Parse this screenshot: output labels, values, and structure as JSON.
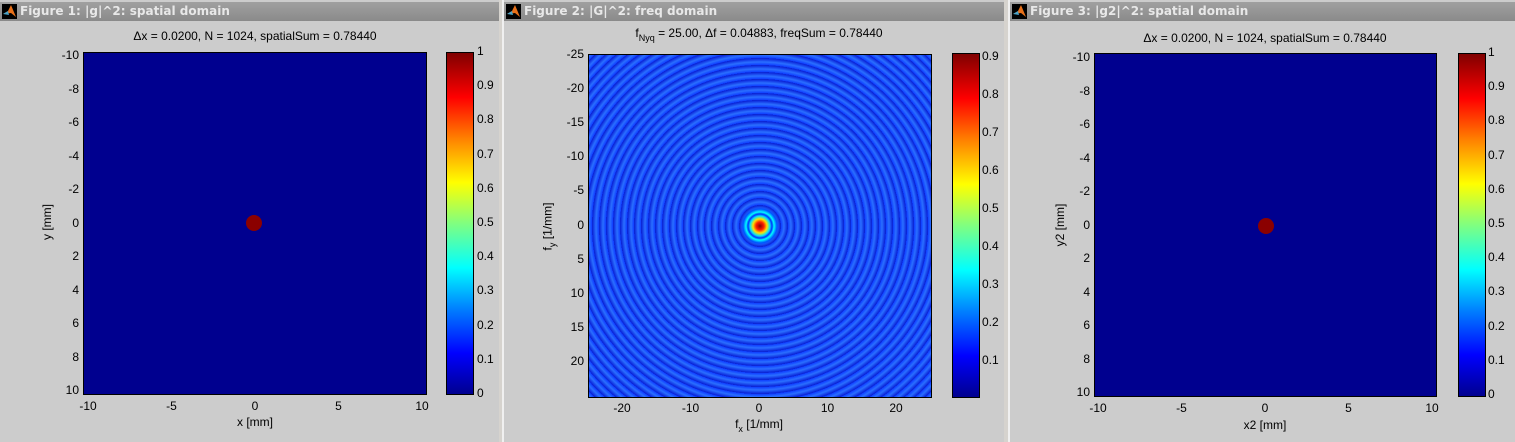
{
  "figures": [
    {
      "window_title": "Figure 1: |g|^2: spatial domain",
      "plot_title": "Δx = 0.0200,  N = 1024,  spatialSum = 0.78440",
      "xlabel": "x [mm]",
      "ylabel": "y [mm]",
      "xticks": [
        "-10",
        "-5",
        "0",
        "5",
        "10"
      ],
      "yticks": [
        "-10",
        "-8",
        "-6",
        "-4",
        "-2",
        "0",
        "2",
        "4",
        "6",
        "8",
        "10"
      ],
      "cbar_ticks": [
        "1",
        "0.9",
        "0.8",
        "0.7",
        "0.6",
        "0.5",
        "0.4",
        "0.3",
        "0.2",
        "0.1",
        "0"
      ]
    },
    {
      "window_title": "Figure 2: |G|^2: freq domain",
      "plot_title_prefix": "f",
      "plot_title_sub": "Nyq",
      "plot_title_rest": " = 25.00,  Δf = 0.04883,  freqSum = 0.78440",
      "xlabel_main": "f",
      "xlabel_sub": "x",
      "xlabel_rest": " [1/mm]",
      "ylabel_main": "f",
      "ylabel_sub": "y",
      "ylabel_rest": "  [1/mm]",
      "xticks": [
        "-20",
        "-10",
        "0",
        "10",
        "20"
      ],
      "yticks": [
        "-25",
        "-20",
        "-15",
        "-10",
        "-5",
        "0",
        "5",
        "10",
        "15",
        "20"
      ],
      "cbar_ticks": [
        "0.9",
        "0.8",
        "0.7",
        "0.6",
        "0.5",
        "0.4",
        "0.3",
        "0.2",
        "0.1"
      ]
    },
    {
      "window_title": "Figure 3: |g2|^2: spatial domain",
      "plot_title": "Δx = 0.0200,  N = 1024,  spatialSum = 0.78440",
      "xlabel": "x2 [mm]",
      "ylabel": "y2 [mm]",
      "xticks": [
        "-10",
        "-5",
        "0",
        "5",
        "10"
      ],
      "yticks": [
        "-10",
        "-8",
        "-6",
        "-4",
        "-2",
        "0",
        "2",
        "4",
        "6",
        "8",
        "10"
      ],
      "cbar_ticks": [
        "1",
        "0.9",
        "0.8",
        "0.7",
        "0.6",
        "0.5",
        "0.4",
        "0.3",
        "0.2",
        "0.1",
        "0"
      ]
    }
  ],
  "colors": {
    "background": "#cccccc",
    "low": "#00008f",
    "high": "#800000",
    "freq_bg": "#0a1fe6"
  },
  "chart_data": [
    {
      "type": "heatmap",
      "title": "Δx = 0.0200,  N = 1024,  spatialSum = 0.78440",
      "xlabel": "x [mm]",
      "ylabel": "y [mm]",
      "xlim": [
        -10,
        10
      ],
      "ylim": [
        -10,
        10
      ],
      "y_reversed": true,
      "colorbar": {
        "colormap": "jet",
        "range": [
          0,
          1
        ],
        "ticks": [
          0,
          0.1,
          0.2,
          0.3,
          0.4,
          0.5,
          0.6,
          0.7,
          0.8,
          0.9,
          1
        ]
      },
      "features": [
        {
          "shape": "circle",
          "center": [
            0,
            0
          ],
          "radius_mm": 0.5,
          "value": 1
        }
      ],
      "background_value": 0
    },
    {
      "type": "heatmap",
      "title": "fNyq = 25.00,  Δf = 0.04883,  freqSum = 0.78440",
      "xlabel": "fx [1/mm]",
      "ylabel": "fy [1/mm]",
      "xlim": [
        -25,
        25
      ],
      "ylim": [
        -25,
        25
      ],
      "y_reversed": true,
      "colorbar": {
        "colormap": "jet",
        "range": [
          0,
          0.9
        ],
        "ticks": [
          0.1,
          0.2,
          0.3,
          0.4,
          0.5,
          0.6,
          0.7,
          0.8,
          0.9
        ]
      },
      "features": [
        {
          "shape": "airy-pattern",
          "center": [
            0,
            0
          ],
          "peak_value": 0.9,
          "ring_background": 0.15
        }
      ]
    },
    {
      "type": "heatmap",
      "title": "Δx = 0.0200,  N = 1024,  spatialSum = 0.78440",
      "xlabel": "x2 [mm]",
      "ylabel": "y2 [mm]",
      "xlim": [
        -10,
        10
      ],
      "ylim": [
        -10,
        10
      ],
      "y_reversed": true,
      "colorbar": {
        "colormap": "jet",
        "range": [
          0,
          1
        ],
        "ticks": [
          0,
          0.1,
          0.2,
          0.3,
          0.4,
          0.5,
          0.6,
          0.7,
          0.8,
          0.9,
          1
        ]
      },
      "features": [
        {
          "shape": "circle",
          "center": [
            0,
            0
          ],
          "radius_mm": 0.5,
          "value": 1
        }
      ],
      "background_value": 0
    }
  ]
}
